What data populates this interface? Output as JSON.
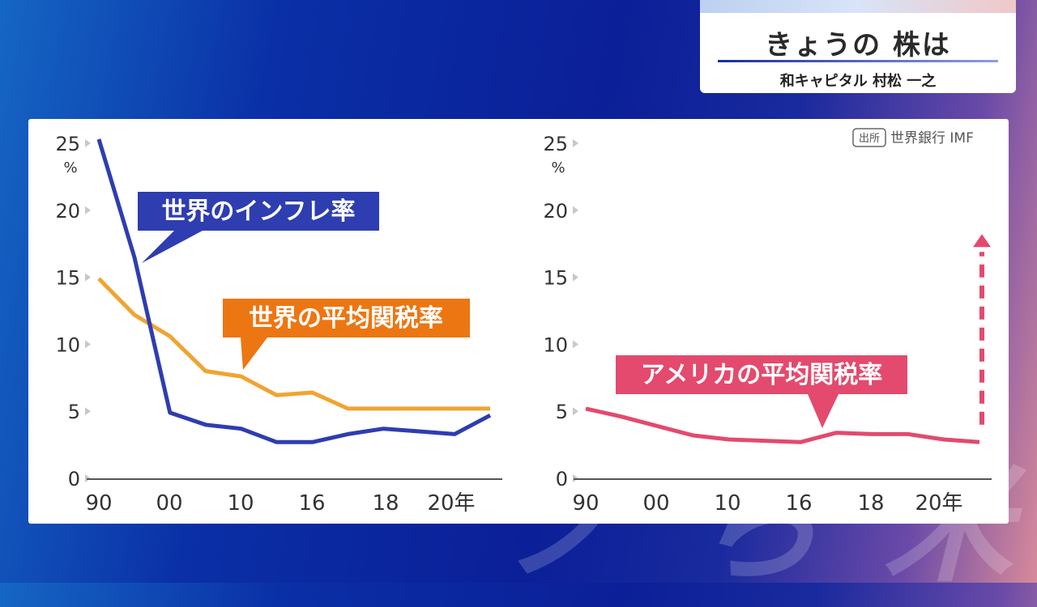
{
  "caption": {
    "title": "きょうの 株は",
    "subtitle": "和キャピタル 村松 一之"
  },
  "source": {
    "badge": "出所",
    "text": "世界銀行 IMF"
  },
  "colors": {
    "inflation": "#2e3db0",
    "world_tariff": "#f0a431",
    "us_tariff": "#e34a6e",
    "world_tariff_label_bg": "#ec7612"
  },
  "chart_data": [
    {
      "type": "line",
      "y_unit_label": "%",
      "yticks": [
        "0",
        "5",
        "10",
        "15",
        "20",
        "25"
      ],
      "ylim": [
        0,
        25
      ],
      "xticks": [
        "90",
        "00",
        "10",
        "16",
        "18",
        "20年"
      ],
      "series": [
        {
          "name": "世界のインフレ率",
          "points": [
            [
              0,
              25.3
            ],
            [
              1,
              16.5
            ],
            [
              2,
              4.9
            ],
            [
              3,
              4.0
            ],
            [
              4,
              3.7
            ],
            [
              5,
              2.7
            ],
            [
              6,
              2.7
            ],
            [
              7,
              3.3
            ],
            [
              8,
              3.7
            ],
            [
              9,
              3.5
            ],
            [
              10,
              3.3
            ],
            [
              11,
              4.7
            ]
          ]
        },
        {
          "name": "世界の平均関税率",
          "points": [
            [
              0,
              14.9
            ],
            [
              1,
              12.2
            ],
            [
              2,
              10.6
            ],
            [
              3,
              8.0
            ],
            [
              4,
              7.6
            ],
            [
              5,
              6.2
            ],
            [
              6,
              6.4
            ],
            [
              7,
              5.2
            ],
            [
              8,
              5.2
            ],
            [
              9,
              5.2
            ],
            [
              10,
              5.2
            ],
            [
              11,
              5.2
            ]
          ]
        }
      ]
    },
    {
      "type": "line",
      "y_unit_label": "%",
      "yticks": [
        "0",
        "5",
        "10",
        "15",
        "20",
        "25"
      ],
      "ylim": [
        0,
        25
      ],
      "xticks": [
        "90",
        "00",
        "10",
        "16",
        "18",
        "20年"
      ],
      "series": [
        {
          "name": "アメリカの平均関税率",
          "points": [
            [
              0,
              5.2
            ],
            [
              1,
              4.6
            ],
            [
              2,
              3.9
            ],
            [
              3,
              3.2
            ],
            [
              4,
              2.9
            ],
            [
              5,
              2.8
            ],
            [
              6,
              2.7
            ],
            [
              7,
              3.4
            ],
            [
              8,
              3.3
            ],
            [
              9,
              3.3
            ],
            [
              10,
              2.9
            ],
            [
              11,
              2.7
            ]
          ],
          "projection": [
            [
              11,
              4.0
            ],
            [
              11,
              17.5
            ]
          ]
        }
      ]
    }
  ],
  "watermark": "ノ ら 米"
}
